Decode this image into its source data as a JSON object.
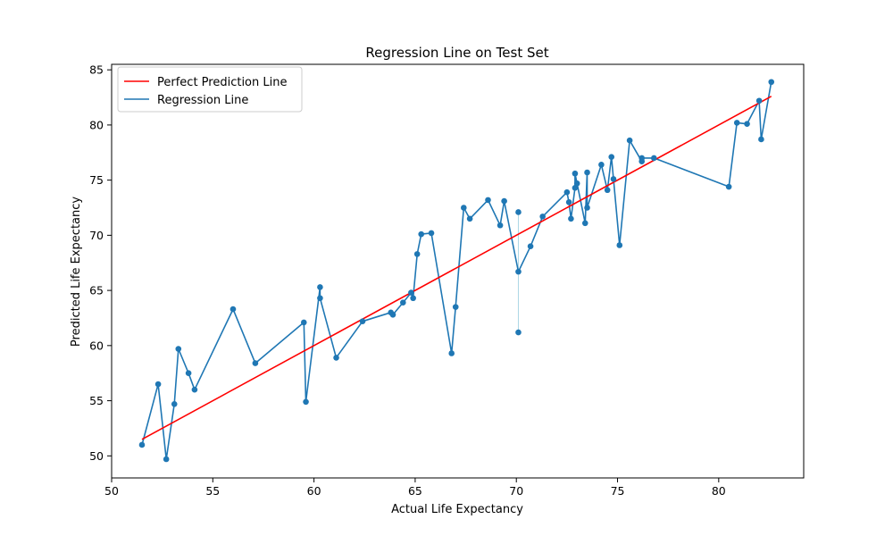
{
  "chart_data": {
    "type": "line",
    "title": "Regression Line on Test Set",
    "xlabel": "Actual Life Expectancy",
    "ylabel": "Predicted Life Expectancy",
    "xlim": [
      50,
      84.2
    ],
    "ylim": [
      48.0,
      85.5
    ],
    "xticks": [
      50,
      55,
      60,
      65,
      70,
      75,
      80
    ],
    "yticks": [
      50,
      55,
      60,
      65,
      70,
      75,
      80,
      85
    ],
    "grid": false,
    "legend_position": "top-left",
    "colors": {
      "perfect": "#ff0000",
      "regression": "#1f77b4",
      "residual": "#add8e6"
    },
    "series": [
      {
        "name": "Perfect Prediction Line",
        "kind": "line",
        "x": [
          51.5,
          82.6
        ],
        "y": [
          51.5,
          82.6
        ]
      },
      {
        "name": "Regression Line",
        "kind": "line-markers",
        "x": [
          51.5,
          52.3,
          52.7,
          53.1,
          53.3,
          53.8,
          54.1,
          56.0,
          57.1,
          59.5,
          59.6,
          60.3,
          60.3,
          61.1,
          62.4,
          63.8,
          63.9,
          64.4,
          64.8,
          64.9,
          65.1,
          65.3,
          65.8,
          66.8,
          67.0,
          67.4,
          67.7,
          68.6,
          69.2,
          69.4,
          70.1,
          70.7,
          71.3,
          72.5,
          72.6,
          72.7,
          72.9,
          72.9,
          73.0,
          73.4,
          73.5,
          73.5,
          74.2,
          74.5,
          74.7,
          74.8,
          75.1,
          75.6,
          76.2,
          76.2,
          76.8,
          80.5,
          80.9,
          81.4,
          82.0,
          82.1,
          82.6
        ],
        "y": [
          51.0,
          56.5,
          49.7,
          54.7,
          59.7,
          57.5,
          56.0,
          63.3,
          58.4,
          62.1,
          54.9,
          65.3,
          64.3,
          58.9,
          62.2,
          63.0,
          62.8,
          63.9,
          64.8,
          64.3,
          68.3,
          70.1,
          70.2,
          59.3,
          63.5,
          72.5,
          71.5,
          73.2,
          70.9,
          73.1,
          66.7,
          69.0,
          71.7,
          73.9,
          73.0,
          71.5,
          74.3,
          75.6,
          74.7,
          71.1,
          75.7,
          72.5,
          76.4,
          74.1,
          77.1,
          75.1,
          69.1,
          78.6,
          76.7,
          77.0,
          77.0,
          74.4,
          80.2,
          80.1,
          82.2,
          78.7,
          83.9
        ]
      }
    ],
    "extra_points": [
      {
        "x": 70.1,
        "y": 61.2
      },
      {
        "x": 70.1,
        "y": 72.1
      }
    ],
    "residual_segments": [
      {
        "x": 70.1,
        "y1": 61.2,
        "y2": 72.1
      }
    ]
  }
}
